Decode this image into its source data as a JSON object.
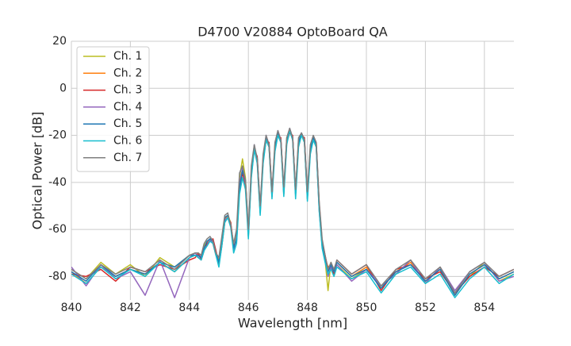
{
  "chart_data": {
    "type": "line",
    "title": "D4700 V20884 OptoBoard QA",
    "x_label": "Wavelength [nm]",
    "y_label": "Optical Power [dB]",
    "xlim": [
      840,
      855
    ],
    "xticks": [
      840,
      842,
      844,
      846,
      848,
      850,
      852,
      854
    ],
    "ylim": [
      -90,
      20
    ],
    "yticks": [
      -80,
      -60,
      -40,
      -20,
      0,
      20
    ],
    "grid": true,
    "legend": "upper left",
    "x": [
      840,
      840.5,
      841,
      841.5,
      842,
      842.5,
      843,
      843.5,
      844,
      844.2,
      844.3,
      844.4,
      844.5,
      844.6,
      844.7,
      844.8,
      844.9,
      845,
      845.1,
      845.2,
      845.3,
      845.4,
      845.5,
      845.6,
      845.7,
      845.8,
      845.9,
      846,
      846.1,
      846.2,
      846.3,
      846.4,
      846.5,
      846.6,
      846.7,
      846.8,
      846.9,
      847,
      847.1,
      847.2,
      847.3,
      847.4,
      847.5,
      847.6,
      847.7,
      847.8,
      847.9,
      848,
      848.1,
      848.2,
      848.3,
      848.4,
      848.5,
      848.6,
      848.7,
      848.8,
      848.9,
      849,
      849.5,
      850,
      850.5,
      851,
      851.5,
      852,
      852.5,
      853,
      853.5,
      854,
      854.5,
      855
    ],
    "series": [
      {
        "name": "Ch. 1",
        "color": "#bcbd22",
        "values": [
          -77,
          -81,
          -74,
          -79,
          -75,
          -80,
          -72,
          -76,
          -71,
          -70,
          -70,
          -71,
          -67,
          -65,
          -64,
          -66,
          -71,
          -73,
          -64,
          -55,
          -54,
          -57,
          -69,
          -62,
          -38,
          -30,
          -38,
          -63,
          -35,
          -25,
          -31,
          -53,
          -29,
          -21,
          -25,
          -46,
          -24,
          -19,
          -22,
          -45,
          -21,
          -18,
          -21,
          -44,
          -22,
          -20,
          -23,
          -47,
          -25,
          -22,
          -25,
          -51,
          -67,
          -73,
          -86,
          -74,
          -79,
          -75,
          -81,
          -77,
          -84,
          -79,
          -73,
          -83,
          -76,
          -87,
          -80,
          -74,
          -82,
          -79
        ]
      },
      {
        "name": "Ch. 2",
        "color": "#ff7f0e",
        "values": [
          -78,
          -83,
          -76,
          -80,
          -77,
          -79,
          -74,
          -78,
          -72,
          -71,
          -71,
          -72,
          -68,
          -66,
          -64,
          -65,
          -70,
          -74,
          -66,
          -56,
          -54,
          -58,
          -68,
          -64,
          -42,
          -35,
          -40,
          -62,
          -36,
          -25,
          -30,
          -52,
          -30,
          -21,
          -24,
          -45,
          -25,
          -19,
          -22,
          -44,
          -22,
          -18,
          -21,
          -45,
          -23,
          -19,
          -22,
          -46,
          -26,
          -21,
          -24,
          -50,
          -66,
          -72,
          -76,
          -75,
          -78,
          -74,
          -80,
          -76,
          -85,
          -78,
          -74,
          -82,
          -77,
          -88,
          -79,
          -75,
          -81,
          -78
        ]
      },
      {
        "name": "Ch. 3",
        "color": "#d62728",
        "values": [
          -79,
          -80,
          -77,
          -82,
          -76,
          -78,
          -75,
          -77,
          -73,
          -72,
          -70,
          -73,
          -69,
          -66,
          -65,
          -64,
          -69,
          -75,
          -67,
          -57,
          -55,
          -57,
          -67,
          -65,
          -43,
          -36,
          -41,
          -61,
          -37,
          -26,
          -29,
          -51,
          -31,
          -22,
          -23,
          -44,
          -26,
          -20,
          -21,
          -43,
          -23,
          -19,
          -20,
          -44,
          -24,
          -20,
          -21,
          -45,
          -27,
          -22,
          -23,
          -49,
          -65,
          -71,
          -77,
          -76,
          -79,
          -73,
          -79,
          -75,
          -86,
          -77,
          -75,
          -81,
          -78,
          -87,
          -80,
          -76,
          -80,
          -77
        ]
      },
      {
        "name": "Ch. 4",
        "color": "#9467bd",
        "values": [
          -76,
          -84,
          -75,
          -81,
          -78,
          -88,
          -73,
          -89,
          -72,
          -70,
          -72,
          -71,
          -68,
          -67,
          -64,
          -66,
          -71,
          -74,
          -65,
          -56,
          -55,
          -58,
          -69,
          -63,
          -41,
          -34,
          -40,
          -63,
          -36,
          -24,
          -31,
          -53,
          -30,
          -20,
          -24,
          -46,
          -25,
          -18,
          -22,
          -45,
          -22,
          -17,
          -21,
          -45,
          -23,
          -19,
          -23,
          -47,
          -26,
          -21,
          -25,
          -52,
          -67,
          -73,
          -80,
          -76,
          -78,
          -75,
          -82,
          -77,
          -84,
          -79,
          -73,
          -83,
          -76,
          -86,
          -78,
          -74,
          -82,
          -80
        ]
      },
      {
        "name": "Ch. 5",
        "color": "#1f77b4",
        "values": [
          -78,
          -82,
          -75,
          -80,
          -77,
          -79,
          -74,
          -76,
          -71,
          -71,
          -71,
          -72,
          -68,
          -65,
          -64,
          -65,
          -70,
          -74,
          -66,
          -55,
          -54,
          -58,
          -68,
          -64,
          -42,
          -35,
          -39,
          -62,
          -36,
          -25,
          -30,
          -52,
          -30,
          -21,
          -24,
          -45,
          -25,
          -19,
          -22,
          -44,
          -22,
          -18,
          -21,
          -45,
          -23,
          -19,
          -22,
          -46,
          -26,
          -21,
          -24,
          -50,
          -66,
          -72,
          -78,
          -75,
          -78,
          -74,
          -80,
          -77,
          -85,
          -78,
          -75,
          -82,
          -77,
          -88,
          -79,
          -75,
          -81,
          -78
        ]
      },
      {
        "name": "Ch. 6",
        "color": "#17becf",
        "values": [
          -79,
          -83,
          -76,
          -81,
          -77,
          -80,
          -74,
          -78,
          -72,
          -71,
          -72,
          -73,
          -69,
          -67,
          -65,
          -66,
          -71,
          -76,
          -67,
          -57,
          -55,
          -59,
          -70,
          -66,
          -45,
          -38,
          -43,
          -64,
          -38,
          -26,
          -32,
          -54,
          -32,
          -22,
          -25,
          -47,
          -27,
          -20,
          -23,
          -46,
          -24,
          -18,
          -22,
          -47,
          -25,
          -20,
          -23,
          -48,
          -28,
          -22,
          -25,
          -52,
          -68,
          -74,
          -79,
          -77,
          -80,
          -76,
          -81,
          -78,
          -87,
          -79,
          -76,
          -83,
          -79,
          -89,
          -81,
          -76,
          -83,
          -79
        ]
      },
      {
        "name": "Ch. 7",
        "color": "#7f7f7f",
        "values": [
          -77,
          -81,
          -75,
          -79,
          -76,
          -78,
          -73,
          -77,
          -71,
          -70,
          -70,
          -71,
          -66,
          -64,
          -63,
          -65,
          -70,
          -72,
          -63,
          -54,
          -53,
          -58,
          -66,
          -60,
          -36,
          -33,
          -39,
          -60,
          -33,
          -24,
          -30,
          -50,
          -28,
          -20,
          -24,
          -44,
          -23,
          -18,
          -22,
          -42,
          -21,
          -17,
          -21,
          -43,
          -21,
          -19,
          -22,
          -44,
          -24,
          -20,
          -23,
          -48,
          -64,
          -71,
          -77,
          -74,
          -77,
          -73,
          -79,
          -75,
          -84,
          -77,
          -73,
          -81,
          -76,
          -87,
          -78,
          -74,
          -80,
          -77
        ]
      }
    ]
  }
}
